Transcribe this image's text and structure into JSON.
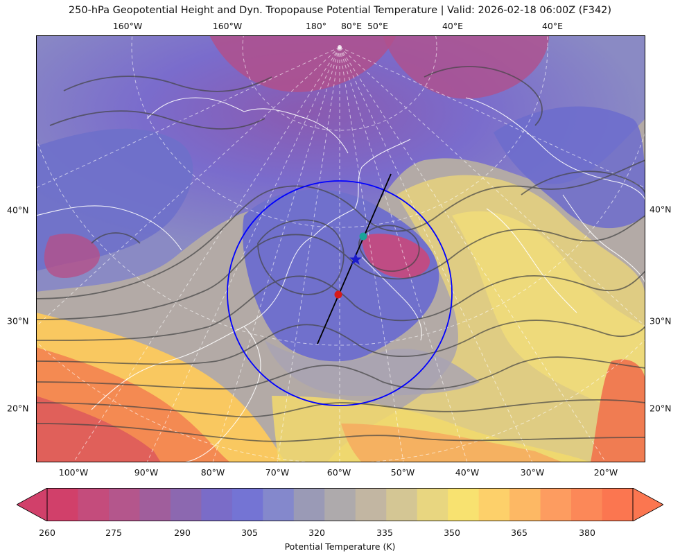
{
  "title": "250-hPa Geopotential Height and Dyn. Tropopause Potential Temperature   |  Valid: 2026-02-18 06:00Z (F342)",
  "map": {
    "top_labels": [
      "160°W",
      "160°W",
      "180°",
      "80°E",
      "50°E",
      "40°E",
      "40°E"
    ],
    "bottom_labels": [
      "100°W",
      "90°W",
      "80°W",
      "70°W",
      "60°W",
      "50°W",
      "40°W",
      "30°W",
      "20°W"
    ],
    "left_labels": [
      "40°N",
      "30°N",
      "20°N"
    ],
    "right_labels": [
      "40°N",
      "30°N",
      "20°N"
    ],
    "markers": {
      "teal_dot": "#1aa39a",
      "star": "#1a1acc",
      "red_dot": "#d81a1a"
    },
    "circle_color": "#0000ff",
    "cross_section_color": "#000000"
  },
  "colorbar": {
    "label": "Potential Temperature (K)",
    "ticks": [
      "260",
      "275",
      "290",
      "305",
      "320",
      "335",
      "350",
      "365",
      "380"
    ],
    "colors": [
      "#d1406a",
      "#c44c7c",
      "#b4568c",
      "#a05e9c",
      "#8c68b0",
      "#7a6cc8",
      "#7474d4",
      "#8488cc",
      "#9a9ab6",
      "#aeaaac",
      "#c2b6a2",
      "#d4c694",
      "#e8d680",
      "#f8e270",
      "#fdd06a",
      "#fdb864",
      "#fd9c60",
      "#fc8858",
      "#fb7650"
    ]
  }
}
